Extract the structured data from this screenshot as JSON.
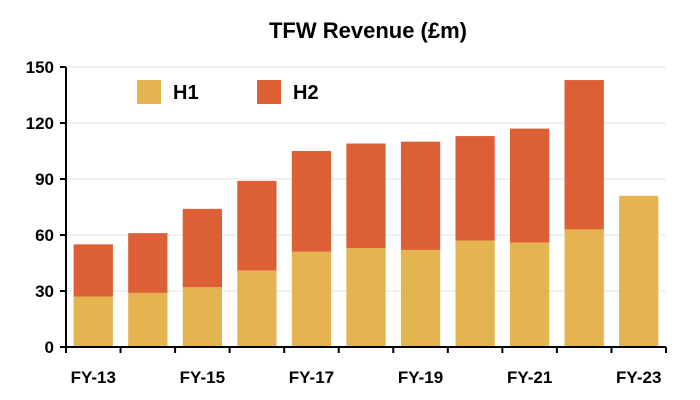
{
  "chart_data": {
    "type": "bar",
    "stacked": true,
    "title": "TFW Revenue (£m)",
    "xlabel": "",
    "ylabel": "",
    "ylim": [
      0,
      150
    ],
    "yticks": [
      0,
      30,
      60,
      90,
      120,
      150
    ],
    "categories": [
      "FY-13",
      "FY-14",
      "FY-15",
      "FY-16",
      "FY-17",
      "FY-18",
      "FY-19",
      "FY-20",
      "FY-21",
      "FY-22",
      "FY-23"
    ],
    "visible_xtick_labels": [
      "FY-13",
      "",
      "FY-15",
      "",
      "FY-17",
      "",
      "FY-19",
      "",
      "FY-21",
      "",
      "FY-23"
    ],
    "series": [
      {
        "name": "H1",
        "color": "#E4B450",
        "values": [
          27,
          29,
          32,
          41,
          51,
          53,
          52,
          57,
          56,
          63,
          81
        ]
      },
      {
        "name": "H2",
        "color": "#DC5F35",
        "values": [
          28,
          32,
          42,
          48,
          54,
          56,
          58,
          56,
          61,
          80,
          0
        ]
      }
    ],
    "grid": true,
    "legend_position": "top-left"
  }
}
